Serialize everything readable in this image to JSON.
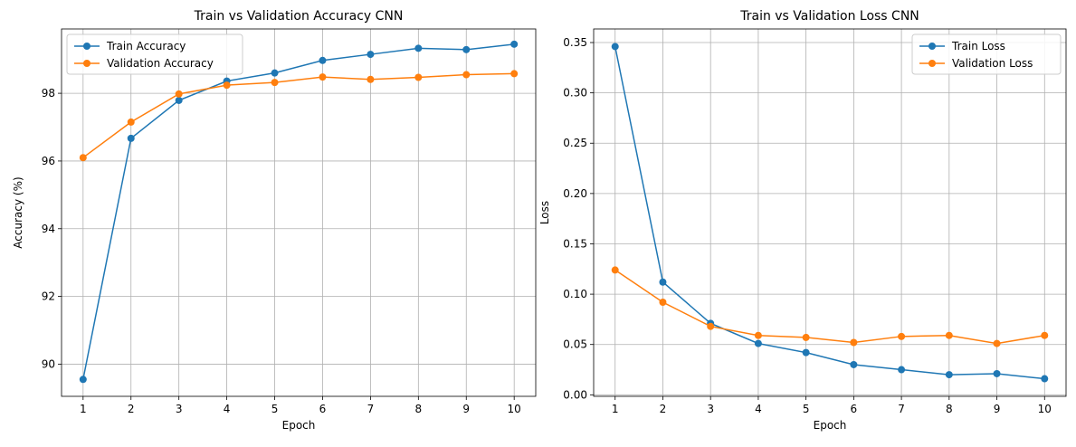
{
  "chart_data": [
    {
      "type": "line",
      "title": "Train vs Validation Accuracy CNN",
      "xlabel": "Epoch",
      "ylabel": "Accuracy (%)",
      "x": [
        1,
        2,
        3,
        4,
        5,
        6,
        7,
        8,
        9,
        10
      ],
      "xticks": [
        "1",
        "2",
        "3",
        "4",
        "5",
        "6",
        "7",
        "8",
        "9",
        "10"
      ],
      "xlim": [
        0.55,
        10.45
      ],
      "ylim": [
        89.05,
        99.9
      ],
      "yticks": [
        90,
        92,
        94,
        96,
        98
      ],
      "ytick_labels": [
        "90",
        "92",
        "94",
        "96",
        "98"
      ],
      "grid": true,
      "legend_position": "top-left",
      "series": [
        {
          "name": "Train Accuracy",
          "color": "#1f77b4",
          "marker": "circle",
          "values": [
            89.55,
            96.67,
            97.79,
            98.36,
            98.6,
            98.97,
            99.15,
            99.33,
            99.29,
            99.45
          ]
        },
        {
          "name": "Validation Accuracy",
          "color": "#ff7f0e",
          "marker": "circle",
          "values": [
            96.1,
            97.15,
            97.98,
            98.24,
            98.32,
            98.48,
            98.41,
            98.47,
            98.55,
            98.58
          ]
        }
      ]
    },
    {
      "type": "line",
      "title": "Train vs Validation Loss CNN",
      "xlabel": "Epoch",
      "ylabel": "Loss",
      "x": [
        1,
        2,
        3,
        4,
        5,
        6,
        7,
        8,
        9,
        10
      ],
      "xticks": [
        "1",
        "2",
        "3",
        "4",
        "5",
        "6",
        "7",
        "8",
        "9",
        "10"
      ],
      "xlim": [
        0.55,
        10.45
      ],
      "ylim": [
        -0.0015,
        0.3635
      ],
      "yticks": [
        0.0,
        0.05,
        0.1,
        0.15,
        0.2,
        0.25,
        0.3,
        0.35
      ],
      "ytick_labels": [
        "0.00",
        "0.05",
        "0.10",
        "0.15",
        "0.20",
        "0.25",
        "0.30",
        "0.35"
      ],
      "grid": true,
      "legend_position": "top-right",
      "series": [
        {
          "name": "Train Loss",
          "color": "#1f77b4",
          "marker": "circle",
          "values": [
            0.346,
            0.112,
            0.071,
            0.051,
            0.042,
            0.03,
            0.025,
            0.02,
            0.021,
            0.016
          ]
        },
        {
          "name": "Validation Loss",
          "color": "#ff7f0e",
          "marker": "circle",
          "values": [
            0.124,
            0.092,
            0.068,
            0.059,
            0.057,
            0.052,
            0.058,
            0.059,
            0.051,
            0.059
          ]
        }
      ]
    }
  ]
}
